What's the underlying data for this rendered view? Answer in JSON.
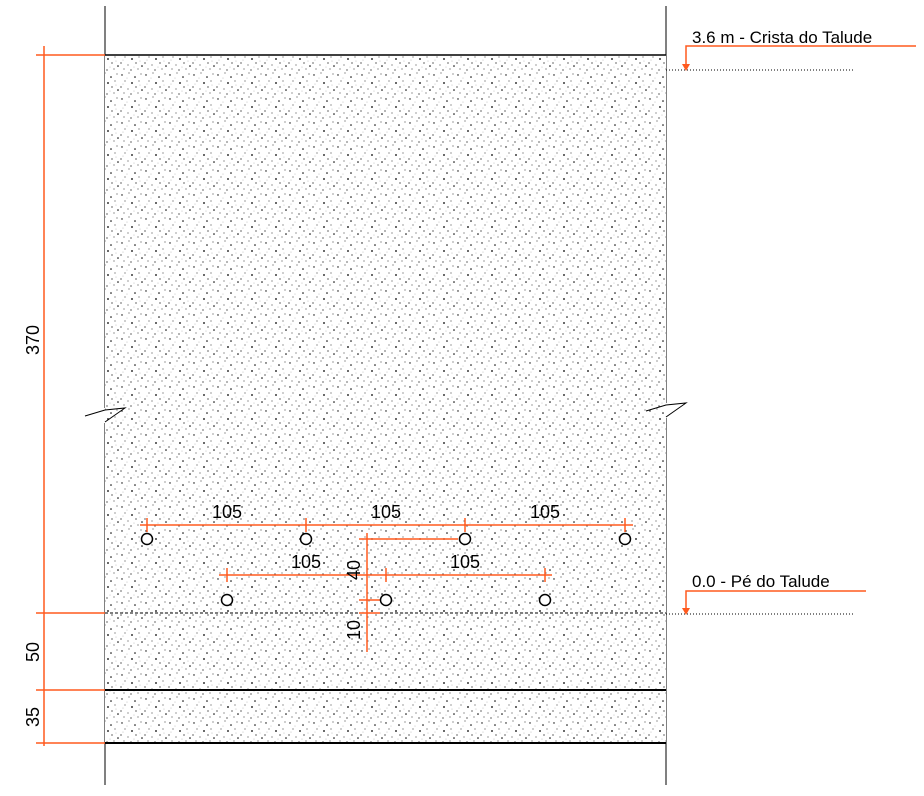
{
  "labels": {
    "crest": "3.6 m - Crista do Talude",
    "toe": "0.0 - Pé do Talude"
  },
  "dimensions": {
    "total_height": "370",
    "layer_1": "50",
    "layer_2": "35",
    "spacing_top_1": "105",
    "spacing_top_2": "105",
    "spacing_top_3": "105",
    "spacing_bottom_1": "105",
    "spacing_bottom_2": "105",
    "row_offset": "40",
    "toe_offset": "10"
  },
  "colors": {
    "dimension": "#ff5a1f",
    "outline": "#000000",
    "fill": "#ffffff"
  }
}
